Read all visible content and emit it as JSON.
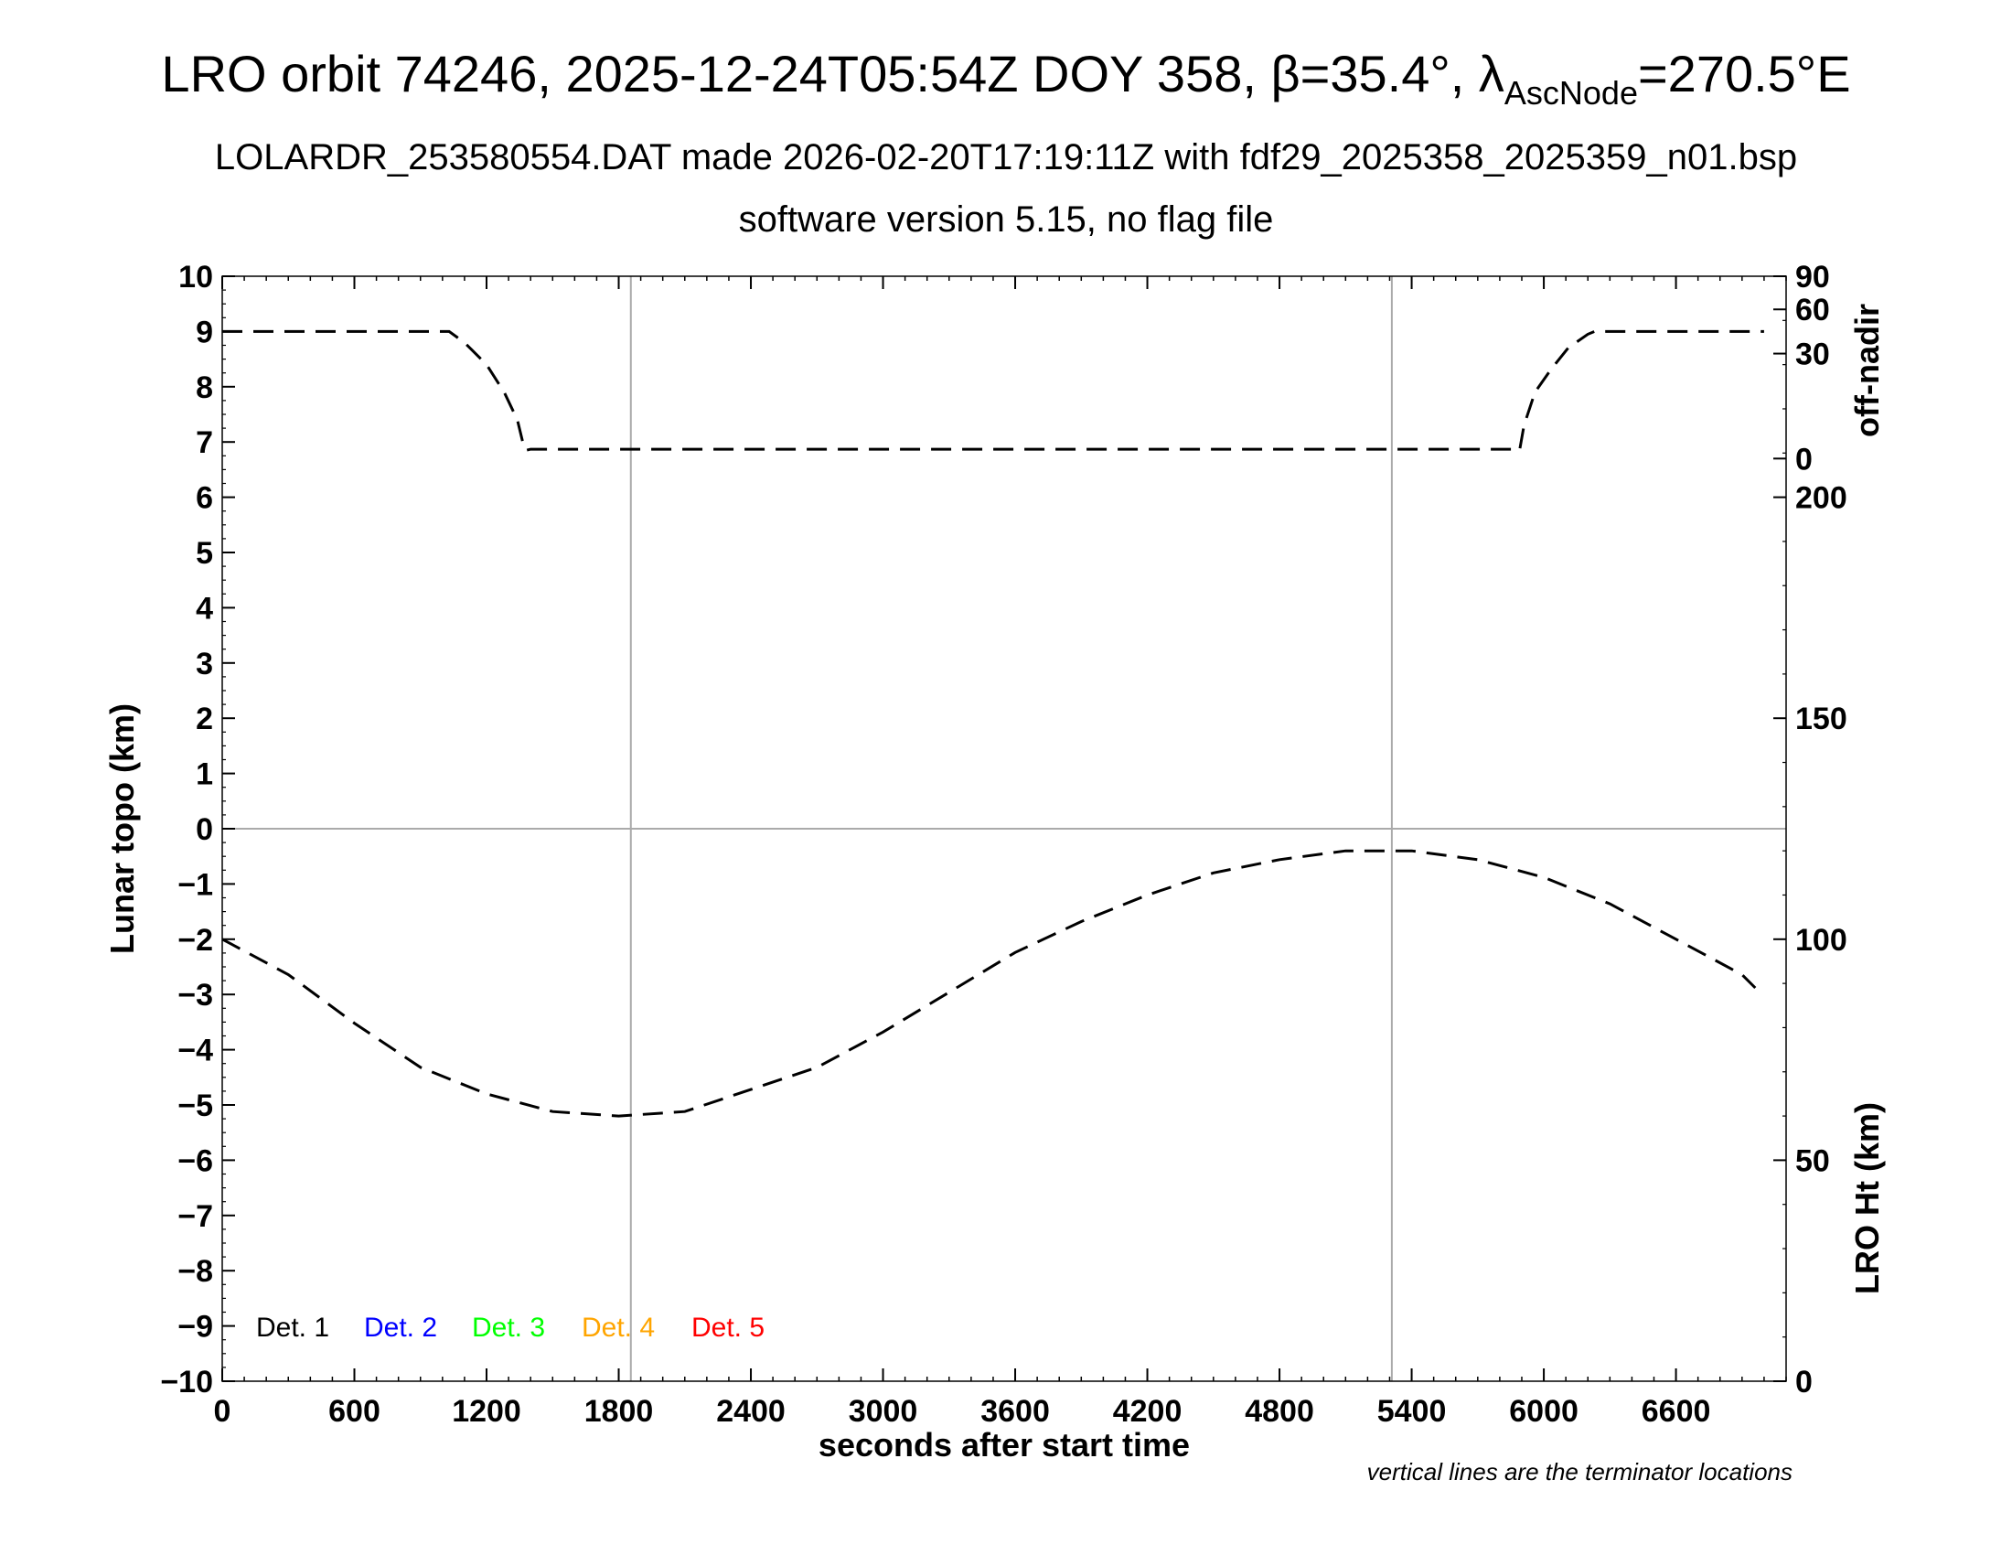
{
  "title": {
    "line1_prefix": "LRO orbit 74246, 2025-12-24T05:54Z DOY 358, β=35.4°, λ",
    "line1_sub": "AscNode",
    "line1_suffix": "=270.5°E",
    "line2": "LOLARDR_253580554.DAT made 2026-02-20T17:19:11Z with fdf29_2025358_2025359_n01.bsp",
    "line3": "software version 5.15, no flag file"
  },
  "chart_data": {
    "type": "line",
    "xlabel": "seconds after start time",
    "ylabel": "Lunar topo (km)",
    "xlim": [
      0,
      7100
    ],
    "ylim": [
      -10,
      10
    ],
    "x_ticks": [
      0,
      600,
      1200,
      1800,
      2400,
      3000,
      3600,
      4200,
      4800,
      5400,
      6000,
      6600
    ],
    "x_tick_labels": [
      "0",
      "600",
      "1200",
      "1800",
      "2400",
      "3000",
      "3600",
      "4200",
      "4800",
      "5400",
      "6000",
      "6600"
    ],
    "y_ticks": [
      10,
      9,
      8,
      7,
      6,
      5,
      4,
      3,
      2,
      1,
      0,
      -1,
      -2,
      -3,
      -4,
      -5,
      -6,
      -7,
      -8,
      -9,
      -10
    ],
    "y_tick_labels": [
      "10",
      "9",
      "8",
      "7",
      "6",
      "5",
      "4",
      "3",
      "2",
      "1",
      "0",
      "−1",
      "−2",
      "−3",
      "−4",
      "−5",
      "−6",
      "−7",
      "−8",
      "−9",
      "−10"
    ],
    "grid": false,
    "terminator_lines_x": [
      1855,
      5310
    ],
    "right_axis_offnadir": {
      "label": "off-nadir",
      "tick_labels": [
        "90",
        "60",
        "30",
        "0"
      ],
      "tick_positions_left_units": [
        10,
        9.4,
        8.6,
        6.7
      ]
    },
    "right_axis_height": {
      "label": "LRO Ht (km)",
      "range": [
        0,
        250
      ],
      "ticks": [
        0,
        50,
        100,
        150,
        200
      ],
      "tick_labels": [
        "0",
        "50",
        "100",
        "150",
        "200"
      ]
    },
    "series": [
      {
        "axis": "off-nadir",
        "style": "dashed",
        "color": "#000000",
        "x": [
          0,
          1030,
          1100,
          1200,
          1280,
          1340,
          1370,
          1380,
          1400,
          1500,
          2000,
          3000,
          4000,
          5000,
          5880,
          5890,
          5910,
          5960,
          6030,
          6110,
          6200,
          6230,
          7000
        ],
        "y": [
          9.0,
          9.0,
          8.8,
          8.4,
          7.9,
          7.4,
          6.9,
          6.85,
          6.87,
          6.87,
          6.87,
          6.87,
          6.87,
          6.87,
          6.87,
          6.85,
          7.3,
          7.9,
          8.3,
          8.7,
          8.95,
          9.0,
          9.0
        ]
      },
      {
        "axis": "height",
        "style": "dashed",
        "color": "#000000",
        "x": [
          0,
          300,
          600,
          900,
          1200,
          1500,
          1800,
          2100,
          2400,
          2700,
          3000,
          3300,
          3600,
          3900,
          4200,
          4500,
          4800,
          5100,
          5400,
          5700,
          6000,
          6300,
          6600,
          6900,
          6960
        ],
        "y": [
          100,
          92,
          81,
          71,
          65,
          61,
          60,
          61,
          66,
          71,
          79,
          88,
          97,
          104,
          110,
          115,
          118,
          120,
          120,
          118,
          114,
          108,
          100,
          92,
          89
        ]
      }
    ],
    "legend": {
      "position": "bottom-left",
      "items": [
        {
          "label": "Det. 1",
          "color": "#000000"
        },
        {
          "label": "Det. 2",
          "color": "#0000ff"
        },
        {
          "label": "Det. 3",
          "color": "#00ff00"
        },
        {
          "label": "Det. 4",
          "color": "#ffa500"
        },
        {
          "label": "Det. 5",
          "color": "#ff0000"
        }
      ]
    },
    "note": "vertical lines are the terminator locations"
  }
}
